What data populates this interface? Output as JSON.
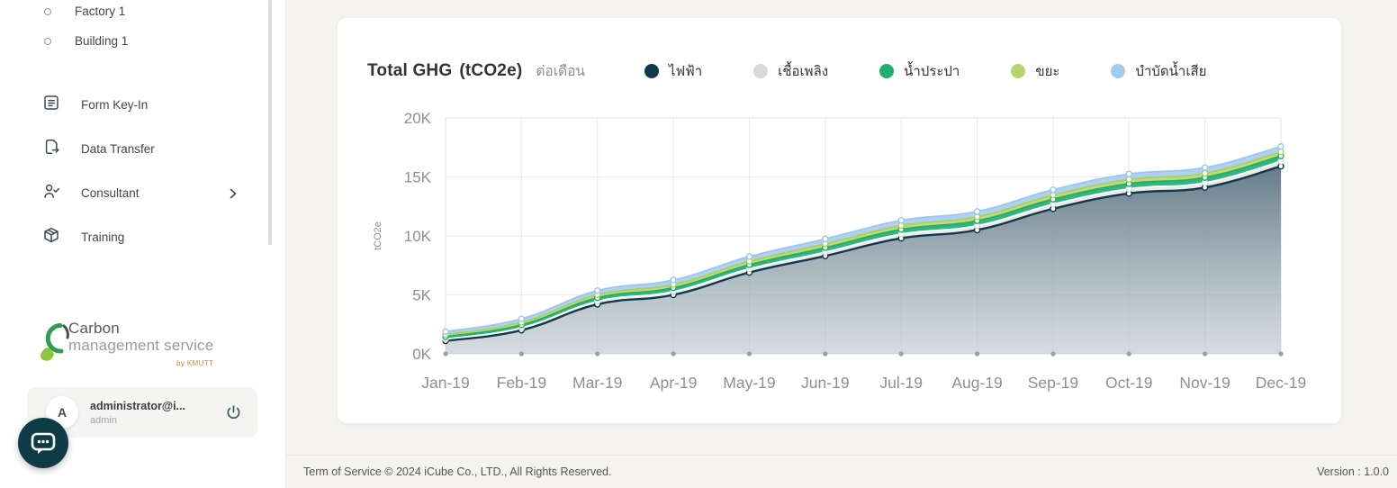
{
  "sidebar": {
    "tree_items": [
      {
        "label": "Factory 1"
      },
      {
        "label": "Building 1"
      }
    ],
    "menu_items": [
      {
        "label": "Form Key-In"
      },
      {
        "label": "Data Transfer"
      },
      {
        "label": "Consultant"
      },
      {
        "label": "Training"
      }
    ],
    "logo": {
      "line1": "Carbon",
      "line2": "management service",
      "byline": "by KMUTT"
    },
    "user": {
      "initial": "A",
      "email": "administrator@i...",
      "role": "admin"
    }
  },
  "chart": {
    "title": "Total GHG",
    "unit": "(tCO2e)",
    "subtitle": "ต่อเดือน",
    "ylabel": "tCO2e"
  },
  "chart_data": {
    "type": "area",
    "stacked": true,
    "title": "Total GHG (tCO2e) ต่อเดือน",
    "ylabel": "tCO2e",
    "ylim": [
      0,
      20000
    ],
    "ytick_values": [
      0,
      5000,
      10000,
      15000,
      20000
    ],
    "ytick_labels": [
      "0K",
      "5K",
      "10K",
      "15K",
      "20K"
    ],
    "grid": true,
    "legend_position": "top",
    "categories": [
      "Jan-19",
      "Feb-19",
      "Mar-19",
      "Apr-19",
      "May-19",
      "Jun-19",
      "Jul-19",
      "Aug-19",
      "Sep-19",
      "Oct-19",
      "Nov-19",
      "Dec-19"
    ],
    "series": [
      {
        "name": "ไฟฟ้า",
        "color": "#0f3a4d",
        "line_color": "#12384a",
        "fill_color": "slate-gradient",
        "values": [
          1100,
          2000,
          4200,
          5000,
          6900,
          8300,
          9800,
          10500,
          12300,
          13600,
          14100,
          15900
        ]
      },
      {
        "name": "เชื้อเพลิง",
        "color": "#d9d9d9",
        "line_color": "#ffffff",
        "fill_color": "#e9e9e9",
        "values": [
          150,
          200,
          250,
          280,
          300,
          320,
          350,
          360,
          380,
          390,
          400,
          420
        ]
      },
      {
        "name": "น้ำประปา",
        "color": "#21ad72",
        "line_color": "#21ad72",
        "fill_color": "#2bb077",
        "values": [
          200,
          250,
          300,
          320,
          350,
          380,
          400,
          420,
          430,
          440,
          450,
          460
        ]
      },
      {
        "name": "ขยะ",
        "color": "#b3d66b",
        "line_color": "#a9d15c",
        "fill_color": "#b9da73",
        "values": [
          180,
          220,
          260,
          280,
          300,
          320,
          330,
          340,
          350,
          350,
          360,
          350
        ]
      },
      {
        "name": "บำบัดน้ำเสีย",
        "color": "#a3cbf0",
        "line_color": "#9cc6ee",
        "fill_color": "#abd0f2",
        "values": [
          250,
          300,
          350,
          380,
          400,
          420,
          440,
          450,
          460,
          470,
          480,
          450
        ]
      }
    ],
    "gradient": {
      "top": "#577080",
      "bottom": "#bcc7cd"
    }
  },
  "footer": {
    "terms": "Term of Service © 2024 iCube Co., LTD., All Rights Reserved.",
    "version": "Version : 1.0.0"
  }
}
